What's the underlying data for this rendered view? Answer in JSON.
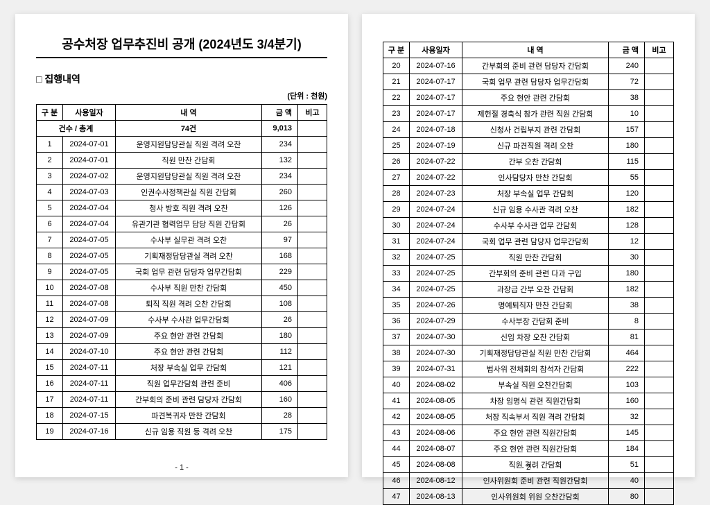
{
  "title": "공수처장 업무추진비 공개 (2024년도 3/4분기)",
  "section_label": "□ 집행내역",
  "unit_label": "(단위 : 천원)",
  "headers": {
    "num": "구 분",
    "date": "사용일자",
    "desc": "내    역",
    "amt": "금 액",
    "note": "비고"
  },
  "total_row": {
    "label": "건수 / 총계",
    "count": "74건",
    "amount": "9,013"
  },
  "page1_rows": [
    {
      "n": "1",
      "d": "2024-07-01",
      "t": "운영지원담당관실 직원 격려 오찬",
      "a": "234"
    },
    {
      "n": "2",
      "d": "2024-07-01",
      "t": "직원 만찬 간담회",
      "a": "132"
    },
    {
      "n": "3",
      "d": "2024-07-02",
      "t": "운영지원담당관실 직원 격려 오찬",
      "a": "234"
    },
    {
      "n": "4",
      "d": "2024-07-03",
      "t": "인권수사정책관실 직원 간담회",
      "a": "260"
    },
    {
      "n": "5",
      "d": "2024-07-04",
      "t": "청사 방호 직원 격려 오찬",
      "a": "126"
    },
    {
      "n": "6",
      "d": "2024-07-04",
      "t": "유관기관 협력업무 담당 직원 간담회",
      "a": "26"
    },
    {
      "n": "7",
      "d": "2024-07-05",
      "t": "수사부 실무관 격려 오찬",
      "a": "97"
    },
    {
      "n": "8",
      "d": "2024-07-05",
      "t": "기획재정담당관실 격려 오찬",
      "a": "168"
    },
    {
      "n": "9",
      "d": "2024-07-05",
      "t": "국회 업무 관련 담당자 업무간담회",
      "a": "229"
    },
    {
      "n": "10",
      "d": "2024-07-08",
      "t": "수사부 직원 만찬 간담회",
      "a": "450"
    },
    {
      "n": "11",
      "d": "2024-07-08",
      "t": "퇴직 직원 격려 오찬 간담회",
      "a": "108"
    },
    {
      "n": "12",
      "d": "2024-07-09",
      "t": "수사부 수사관 업무간담회",
      "a": "26"
    },
    {
      "n": "13",
      "d": "2024-07-09",
      "t": "주요 현안 관련 간담회",
      "a": "180"
    },
    {
      "n": "14",
      "d": "2024-07-10",
      "t": "주요 현안 관련 간담회",
      "a": "112"
    },
    {
      "n": "15",
      "d": "2024-07-11",
      "t": "처장 부속실 업무 간담회",
      "a": "121"
    },
    {
      "n": "16",
      "d": "2024-07-11",
      "t": "직원 업무간담회 관련 준비",
      "a": "406"
    },
    {
      "n": "17",
      "d": "2024-07-11",
      "t": "간부회의 준비 관련 담당자 간담회",
      "a": "160"
    },
    {
      "n": "18",
      "d": "2024-07-15",
      "t": "파견복귀자 만찬 간담회",
      "a": "28"
    },
    {
      "n": "19",
      "d": "2024-07-16",
      "t": "신규 임용 직원 등 격려 오찬",
      "a": "175"
    }
  ],
  "page2_rows": [
    {
      "n": "20",
      "d": "2024-07-16",
      "t": "간부회의 준비 관련 담당자 간담회",
      "a": "240"
    },
    {
      "n": "21",
      "d": "2024-07-17",
      "t": "국회 업무 관련 담당자 업무간담회",
      "a": "72"
    },
    {
      "n": "22",
      "d": "2024-07-17",
      "t": "주요 현안 관련 간담회",
      "a": "38"
    },
    {
      "n": "23",
      "d": "2024-07-17",
      "t": "제헌절 경축식 참가 관련 직원 간담회",
      "a": "10"
    },
    {
      "n": "24",
      "d": "2024-07-18",
      "t": "신청사 건립부지 관련 간담회",
      "a": "157"
    },
    {
      "n": "25",
      "d": "2024-07-19",
      "t": "신규 파견직원 격려 오찬",
      "a": "180"
    },
    {
      "n": "26",
      "d": "2024-07-22",
      "t": "간부 오찬 간담회",
      "a": "115"
    },
    {
      "n": "27",
      "d": "2024-07-22",
      "t": "인사담당자 만찬 간담회",
      "a": "55"
    },
    {
      "n": "28",
      "d": "2024-07-23",
      "t": "처장 부속실 업무 간담회",
      "a": "120"
    },
    {
      "n": "29",
      "d": "2024-07-24",
      "t": "신규 임용 수사관 격려 오찬",
      "a": "182"
    },
    {
      "n": "30",
      "d": "2024-07-24",
      "t": "수사부 수사관 업무 간담회",
      "a": "128"
    },
    {
      "n": "31",
      "d": "2024-07-24",
      "t": "국회 업무 관련 담당자 업무간담회",
      "a": "12"
    },
    {
      "n": "32",
      "d": "2024-07-25",
      "t": "직원 만찬 간담회",
      "a": "30"
    },
    {
      "n": "33",
      "d": "2024-07-25",
      "t": "간부회의 준비 관련 다과 구입",
      "a": "180"
    },
    {
      "n": "34",
      "d": "2024-07-25",
      "t": "과장급 간부 오찬 간담회",
      "a": "182"
    },
    {
      "n": "35",
      "d": "2024-07-26",
      "t": "명예퇴직자 만찬 간담회",
      "a": "38"
    },
    {
      "n": "36",
      "d": "2024-07-29",
      "t": "수사부장 간담회 준비",
      "a": "8"
    },
    {
      "n": "37",
      "d": "2024-07-30",
      "t": "신임 차장 오찬 간담회",
      "a": "81"
    },
    {
      "n": "38",
      "d": "2024-07-30",
      "t": "기획재정담당관실 직원 만찬 간담회",
      "a": "464"
    },
    {
      "n": "39",
      "d": "2024-07-31",
      "t": "법사위 전체회의 참석자 간담회",
      "a": "222"
    },
    {
      "n": "40",
      "d": "2024-08-02",
      "t": "부속실 직원 오찬간담회",
      "a": "103"
    },
    {
      "n": "41",
      "d": "2024-08-05",
      "t": "차장 임명식 관련 직원간담회",
      "a": "160"
    },
    {
      "n": "42",
      "d": "2024-08-05",
      "t": "처장 직속부서 직원 격려 간담회",
      "a": "32"
    },
    {
      "n": "43",
      "d": "2024-08-06",
      "t": "주요 현안 관련 직원간담회",
      "a": "145"
    },
    {
      "n": "44",
      "d": "2024-08-07",
      "t": "주요 현안 관련 직원간담회",
      "a": "184"
    },
    {
      "n": "45",
      "d": "2024-08-08",
      "t": "직원 격려 간담회",
      "a": "51"
    },
    {
      "n": "46",
      "d": "2024-08-12",
      "t": "인사위원회 준비 관련 직원간담회",
      "a": "40"
    },
    {
      "n": "47",
      "d": "2024-08-13",
      "t": "인사위원회 위원 오찬간담회",
      "a": "80"
    }
  ],
  "page_numbers": {
    "p1": "- 1 -",
    "p2": "- 2 -"
  }
}
